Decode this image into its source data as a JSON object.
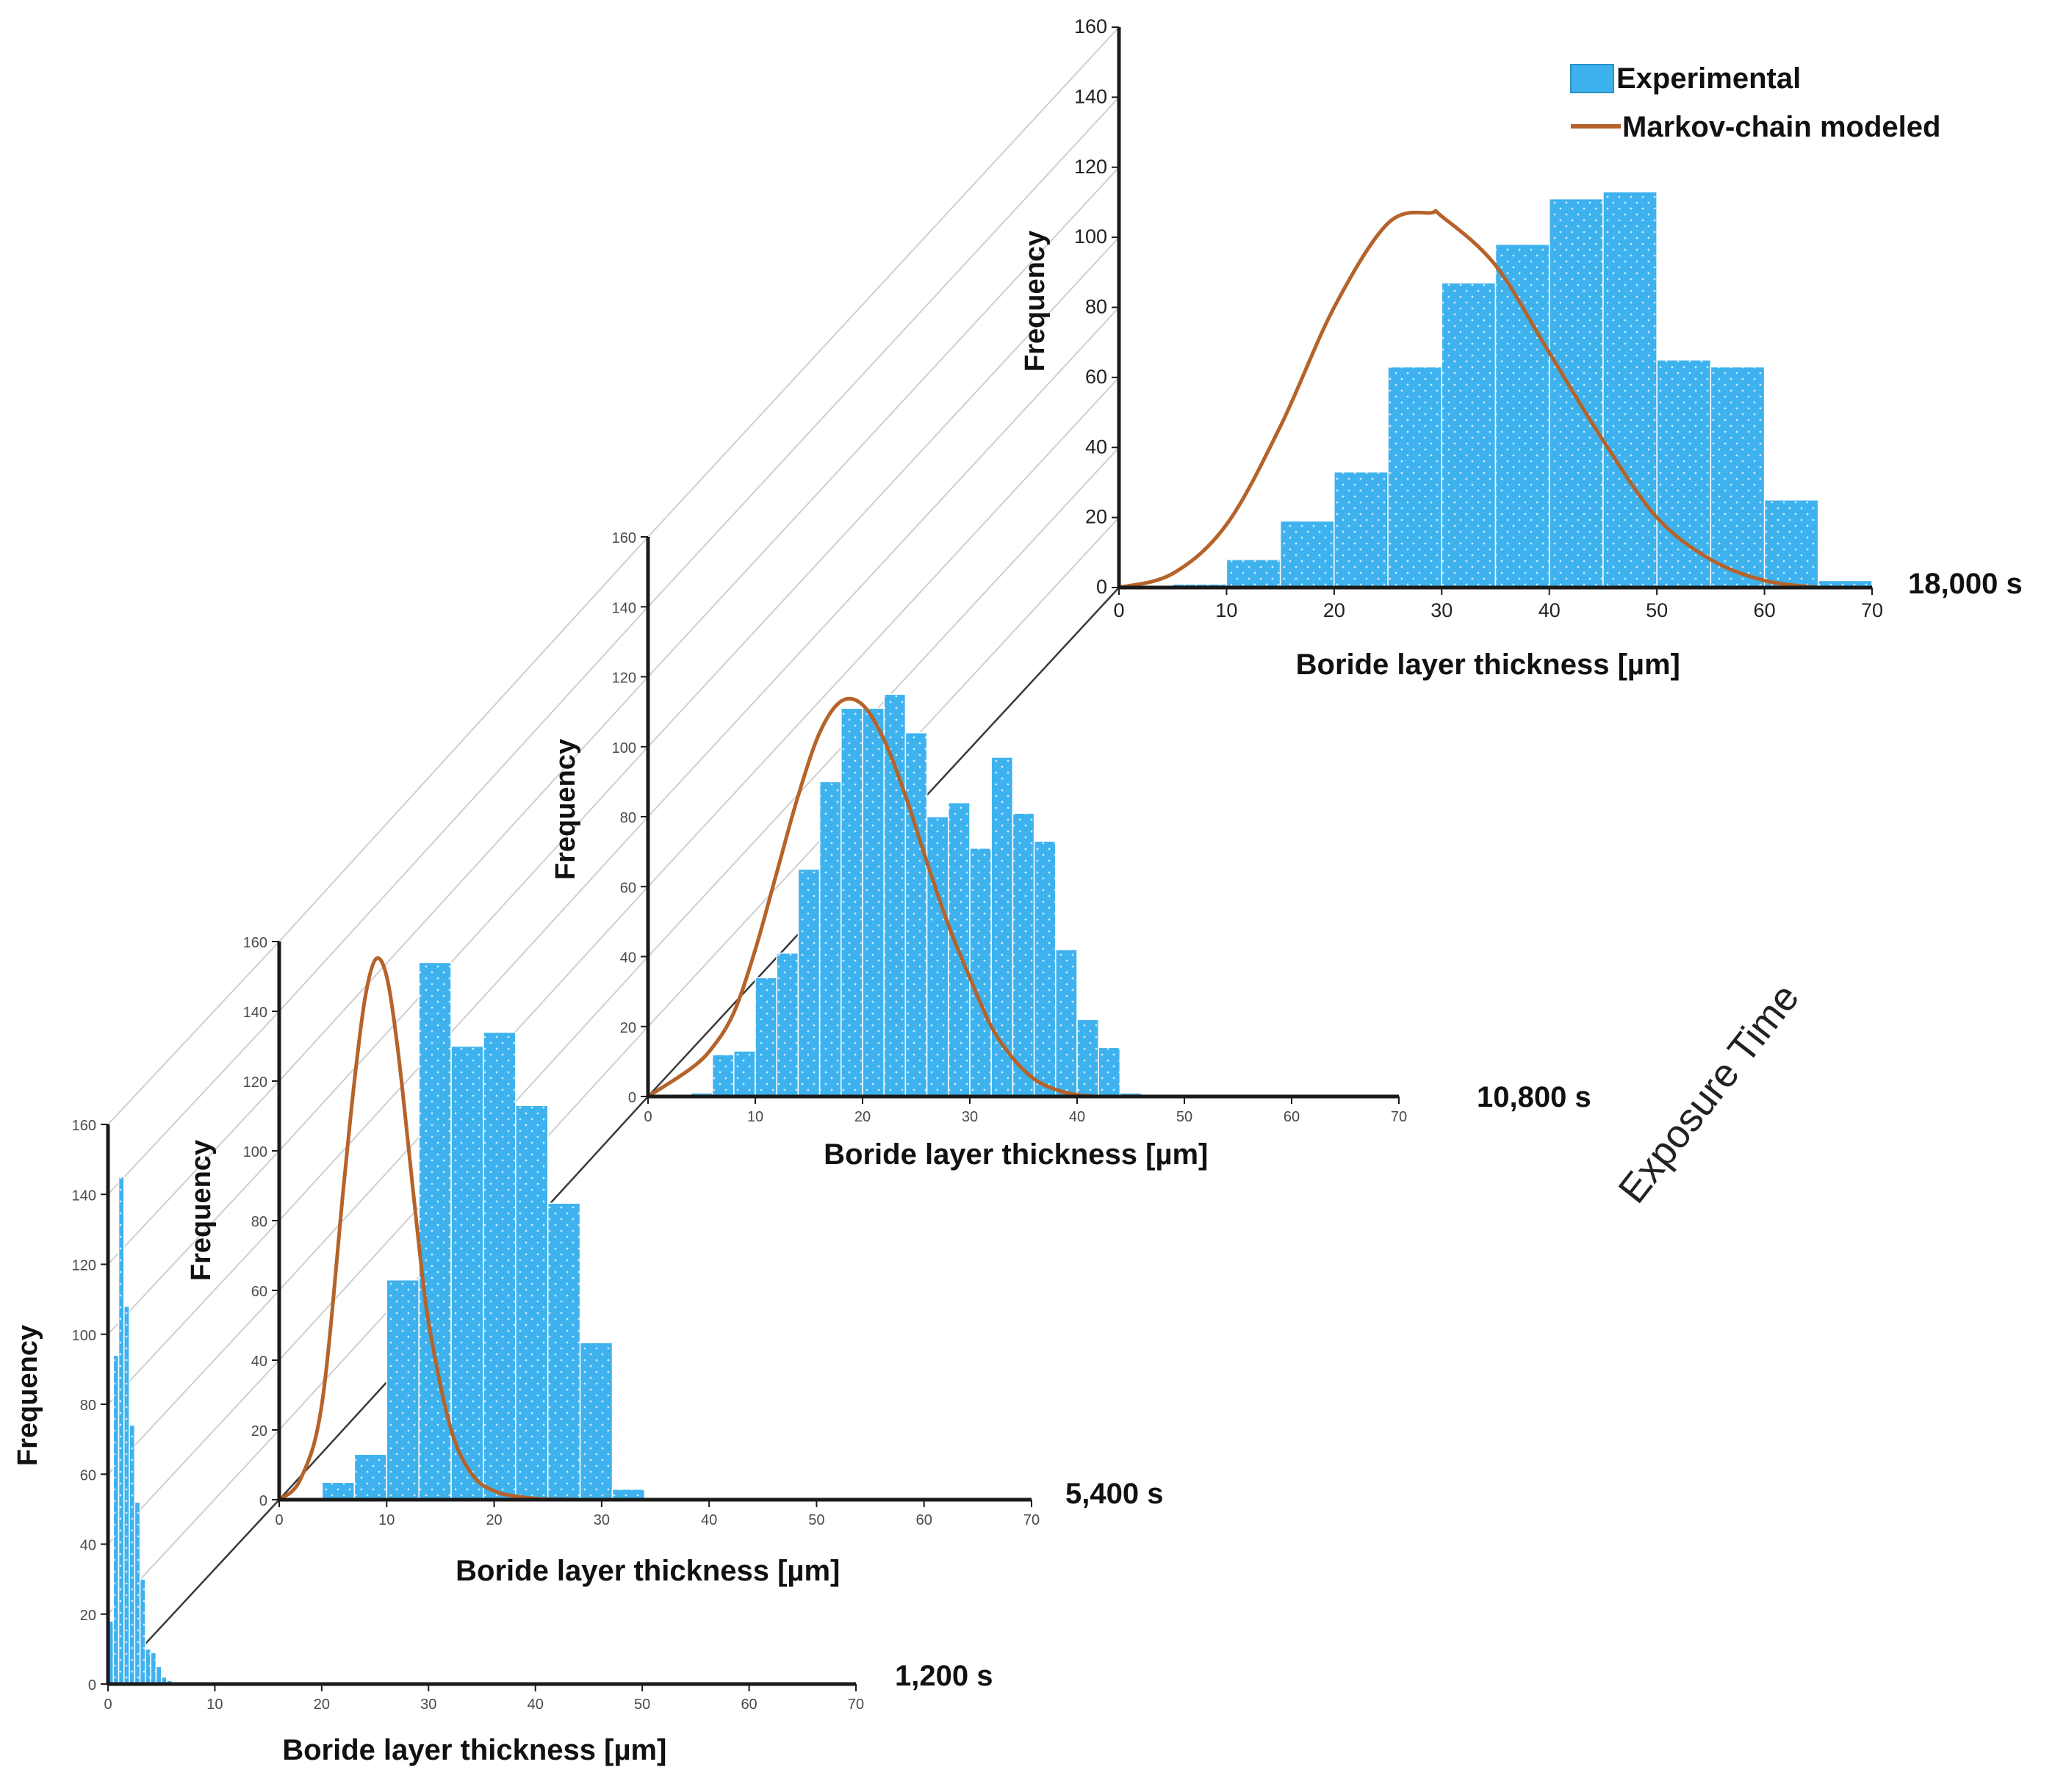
{
  "colors": {
    "bar": "#3eb2ee",
    "curve": "#b5632a",
    "axis": "#1a1a1a"
  },
  "legend": {
    "experimental": "Experimental",
    "model": "Markov-chain modeled",
    "position": "top-right"
  },
  "exposure_axis_label": "Exposure Time",
  "chart_data": [
    {
      "type": "bar",
      "time_label": "1,200 s",
      "xlabel": "Boride layer thickness [µm]",
      "ylabel": "Frequency",
      "xlim": [
        0,
        70
      ],
      "ylim": [
        0,
        160
      ],
      "xticks": [
        0,
        10,
        20,
        30,
        40,
        50,
        60,
        70
      ],
      "yticks": [
        0,
        20,
        40,
        60,
        80,
        100,
        120,
        140,
        160
      ],
      "bin_width": 0.5,
      "bins_start": [
        0,
        0.5,
        1,
        1.5,
        2,
        2.5,
        3,
        3.5,
        4,
        4.5,
        5,
        5.5,
        6
      ],
      "values": [
        18,
        94,
        145,
        108,
        74,
        52,
        30,
        10,
        9,
        5,
        2,
        1,
        0
      ],
      "model": null
    },
    {
      "type": "bar",
      "time_label": "5,400 s",
      "xlabel": "Boride layer thickness [µm]",
      "ylabel": "Frequency",
      "xlim": [
        0,
        70
      ],
      "ylim": [
        0,
        160
      ],
      "xticks": [
        0,
        10,
        20,
        30,
        40,
        50,
        60,
        70
      ],
      "yticks": [
        0,
        20,
        40,
        60,
        80,
        100,
        120,
        140,
        160
      ],
      "bin_width": 3,
      "bins_start": [
        4,
        7,
        10,
        13,
        16,
        19,
        22,
        25,
        28,
        31
      ],
      "values": [
        5,
        13,
        63,
        154,
        130,
        134,
        113,
        85,
        45,
        3
      ],
      "model": {
        "x": [
          0,
          2,
          4,
          6,
          7,
          8,
          9,
          10,
          11,
          12,
          13,
          14,
          16,
          18,
          20,
          22,
          24,
          26,
          28,
          30
        ],
        "y": [
          0,
          6,
          28,
          90,
          120,
          144,
          155,
          150,
          130,
          102,
          73,
          49,
          20,
          7,
          2.5,
          1,
          0.3,
          0.1,
          0,
          0
        ]
      }
    },
    {
      "type": "bar",
      "time_label": "10,800 s",
      "xlabel": "Boride layer thickness [µm]",
      "ylabel": "Frequency",
      "xlim": [
        0,
        70
      ],
      "ylim": [
        0,
        160
      ],
      "xticks": [
        0,
        10,
        20,
        30,
        40,
        50,
        60,
        70
      ],
      "yticks": [
        0,
        20,
        40,
        60,
        80,
        100,
        120,
        140,
        160
      ],
      "bin_width": 2,
      "bins_start": [
        4,
        6,
        8,
        10,
        12,
        14,
        16,
        18,
        20,
        22,
        24,
        26,
        28,
        30,
        32,
        34,
        36,
        38,
        40,
        42,
        44
      ],
      "values": [
        1,
        12,
        13,
        34,
        41,
        65,
        90,
        111,
        111,
        115,
        104,
        80,
        84,
        71,
        97,
        81,
        73,
        42,
        22,
        14,
        1
      ],
      "model": {
        "x": [
          0,
          4,
          6,
          8,
          10,
          12,
          14,
          16,
          18,
          20,
          22,
          24,
          26,
          28,
          30,
          32,
          34,
          36,
          38,
          40,
          42
        ],
        "y": [
          0,
          8,
          14,
          24,
          42,
          64,
          86,
          104,
          113,
          112,
          102,
          86,
          67,
          49,
          34,
          20,
          11,
          5,
          2,
          0.5,
          0
        ]
      }
    },
    {
      "type": "bar",
      "time_label": "18,000 s",
      "xlabel": "Boride layer thickness [µm]",
      "ylabel": "Frequency",
      "xlim": [
        0,
        70
      ],
      "ylim": [
        0,
        160
      ],
      "xticks": [
        0,
        10,
        20,
        30,
        40,
        50,
        60,
        70
      ],
      "yticks": [
        0,
        20,
        40,
        60,
        80,
        100,
        120,
        140,
        160
      ],
      "bin_width": 5,
      "bins_start": [
        5,
        10,
        15,
        20,
        25,
        30,
        35,
        40,
        45,
        50,
        55,
        60,
        65
      ],
      "values": [
        1,
        8,
        19,
        33,
        63,
        87,
        98,
        111,
        113,
        65,
        63,
        25,
        2
      ],
      "model": {
        "x": [
          0,
          5,
          10,
          15,
          20,
          25,
          29,
          30,
          35,
          40,
          45,
          50,
          55,
          60,
          65
        ],
        "y": [
          0,
          4,
          18,
          46,
          80,
          104,
          107,
          106,
          92,
          67,
          42,
          20,
          8,
          2,
          0
        ]
      }
    }
  ]
}
